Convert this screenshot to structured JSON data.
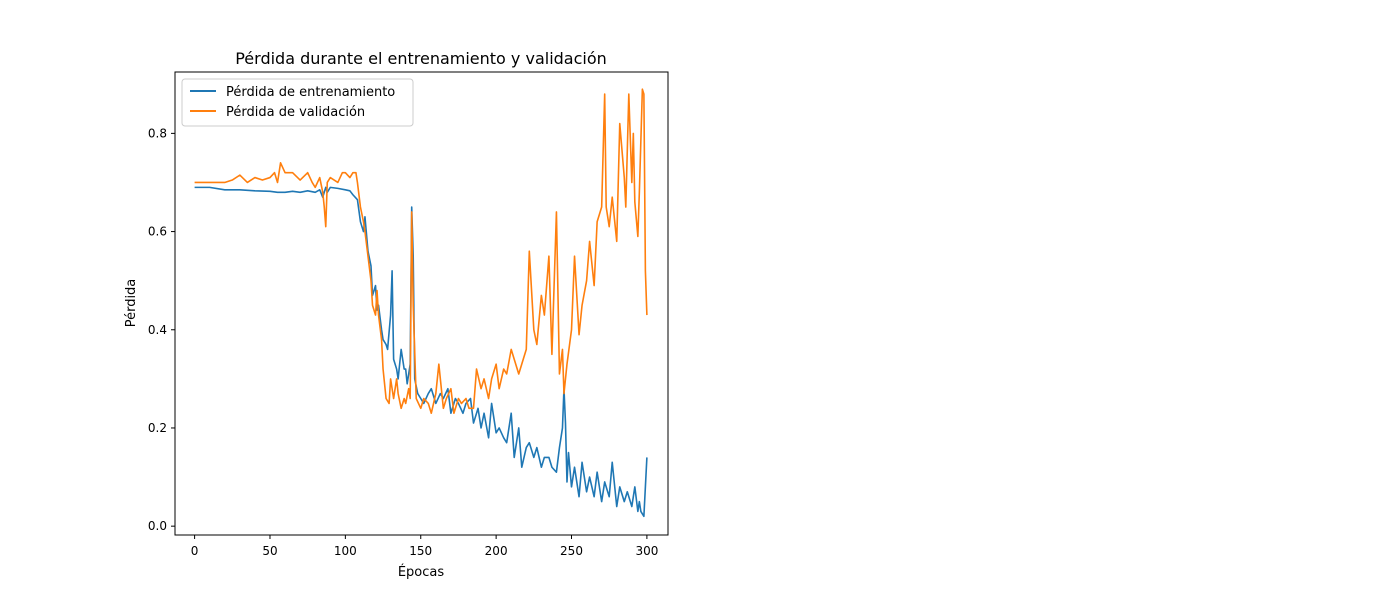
{
  "chart_data": {
    "type": "line",
    "title": "Pérdida durante el entrenamiento y validación",
    "xlabel": "Épocas",
    "ylabel": "Pérdida",
    "xlim": [
      -13,
      314
    ],
    "ylim": [
      -0.018,
      0.925
    ],
    "xticks": [
      0,
      50,
      100,
      150,
      200,
      250,
      300
    ],
    "yticks": [
      0.0,
      0.2,
      0.4,
      0.6,
      0.8
    ],
    "legend_position": "top-left",
    "grid": false,
    "series": [
      {
        "name": "Pérdida de entrenamiento",
        "color": "#1f77b4",
        "x": [
          0,
          5,
          10,
          20,
          30,
          40,
          50,
          55,
          60,
          65,
          70,
          75,
          80,
          83,
          85,
          87,
          88,
          90,
          95,
          100,
          103,
          105,
          108,
          110,
          112,
          113,
          115,
          117,
          118,
          120,
          121,
          122,
          124,
          125,
          127,
          128,
          130,
          131,
          132,
          134,
          135,
          137,
          139,
          140,
          141,
          143,
          144,
          145,
          146,
          148,
          150,
          152,
          155,
          157,
          160,
          163,
          165,
          168,
          170,
          173,
          175,
          178,
          180,
          183,
          185,
          188,
          190,
          192,
          195,
          197,
          200,
          202,
          205,
          207,
          210,
          212,
          215,
          217,
          220,
          222,
          225,
          227,
          230,
          232,
          235,
          237,
          240,
          242,
          244,
          245,
          246,
          247,
          248,
          250,
          252,
          255,
          257,
          260,
          262,
          265,
          267,
          270,
          272,
          275,
          277,
          280,
          282,
          285,
          287,
          290,
          292,
          294,
          295,
          296,
          298,
          300
        ],
        "y": [
          0.69,
          0.69,
          0.69,
          0.685,
          0.685,
          0.683,
          0.682,
          0.68,
          0.68,
          0.682,
          0.68,
          0.683,
          0.68,
          0.685,
          0.67,
          0.69,
          0.68,
          0.69,
          0.688,
          0.685,
          0.683,
          0.675,
          0.665,
          0.62,
          0.6,
          0.63,
          0.56,
          0.53,
          0.47,
          0.49,
          0.44,
          0.45,
          0.4,
          0.38,
          0.37,
          0.36,
          0.43,
          0.52,
          0.34,
          0.32,
          0.3,
          0.36,
          0.32,
          0.32,
          0.29,
          0.33,
          0.65,
          0.55,
          0.3,
          0.27,
          0.26,
          0.25,
          0.27,
          0.28,
          0.25,
          0.27,
          0.26,
          0.28,
          0.23,
          0.26,
          0.25,
          0.23,
          0.25,
          0.26,
          0.21,
          0.24,
          0.2,
          0.23,
          0.18,
          0.25,
          0.19,
          0.2,
          0.18,
          0.17,
          0.23,
          0.14,
          0.2,
          0.12,
          0.16,
          0.17,
          0.14,
          0.16,
          0.12,
          0.14,
          0.14,
          0.12,
          0.11,
          0.16,
          0.2,
          0.28,
          0.21,
          0.09,
          0.15,
          0.08,
          0.12,
          0.06,
          0.13,
          0.07,
          0.1,
          0.06,
          0.11,
          0.05,
          0.09,
          0.06,
          0.13,
          0.04,
          0.08,
          0.05,
          0.07,
          0.04,
          0.08,
          0.03,
          0.05,
          0.03,
          0.02,
          0.14
        ]
      },
      {
        "name": "Pérdida de validación",
        "color": "#ff7f0e",
        "x": [
          0,
          5,
          10,
          15,
          20,
          25,
          30,
          35,
          40,
          45,
          50,
          53,
          55,
          57,
          60,
          65,
          70,
          75,
          78,
          80,
          83,
          85,
          86,
          87,
          88,
          90,
          95,
          98,
          100,
          103,
          105,
          107,
          108,
          110,
          112,
          113,
          115,
          117,
          118,
          120,
          121,
          122,
          124,
          125,
          127,
          129,
          130,
          132,
          134,
          135,
          137,
          139,
          140,
          142,
          143,
          144,
          145,
          147,
          150,
          152,
          155,
          157,
          160,
          162,
          165,
          167,
          170,
          172,
          175,
          177,
          180,
          182,
          185,
          187,
          190,
          192,
          195,
          197,
          200,
          202,
          205,
          207,
          210,
          212,
          215,
          217,
          220,
          222,
          225,
          227,
          230,
          232,
          235,
          237,
          240,
          242,
          244,
          245,
          247,
          250,
          252,
          255,
          257,
          260,
          262,
          265,
          267,
          270,
          272,
          273,
          275,
          277,
          280,
          282,
          285,
          286,
          288,
          290,
          291,
          292,
          294,
          295,
          297,
          298,
          299,
          300
        ],
        "y": [
          0.7,
          0.7,
          0.7,
          0.7,
          0.7,
          0.705,
          0.715,
          0.7,
          0.71,
          0.705,
          0.71,
          0.72,
          0.7,
          0.74,
          0.72,
          0.72,
          0.705,
          0.72,
          0.7,
          0.69,
          0.71,
          0.68,
          0.65,
          0.61,
          0.7,
          0.71,
          0.7,
          0.72,
          0.72,
          0.71,
          0.72,
          0.72,
          0.7,
          0.65,
          0.62,
          0.6,
          0.55,
          0.5,
          0.45,
          0.43,
          0.48,
          0.43,
          0.38,
          0.32,
          0.26,
          0.25,
          0.3,
          0.26,
          0.3,
          0.27,
          0.24,
          0.26,
          0.25,
          0.28,
          0.26,
          0.64,
          0.45,
          0.26,
          0.24,
          0.26,
          0.25,
          0.23,
          0.27,
          0.33,
          0.24,
          0.26,
          0.28,
          0.23,
          0.26,
          0.25,
          0.26,
          0.24,
          0.24,
          0.32,
          0.28,
          0.3,
          0.26,
          0.3,
          0.33,
          0.28,
          0.32,
          0.31,
          0.36,
          0.34,
          0.31,
          0.33,
          0.36,
          0.56,
          0.4,
          0.37,
          0.47,
          0.43,
          0.55,
          0.35,
          0.64,
          0.31,
          0.36,
          0.27,
          0.33,
          0.4,
          0.55,
          0.39,
          0.45,
          0.5,
          0.58,
          0.49,
          0.62,
          0.65,
          0.88,
          0.65,
          0.61,
          0.67,
          0.58,
          0.82,
          0.71,
          0.65,
          0.88,
          0.7,
          0.8,
          0.66,
          0.59,
          0.68,
          0.89,
          0.88,
          0.52,
          0.43
        ]
      }
    ]
  }
}
